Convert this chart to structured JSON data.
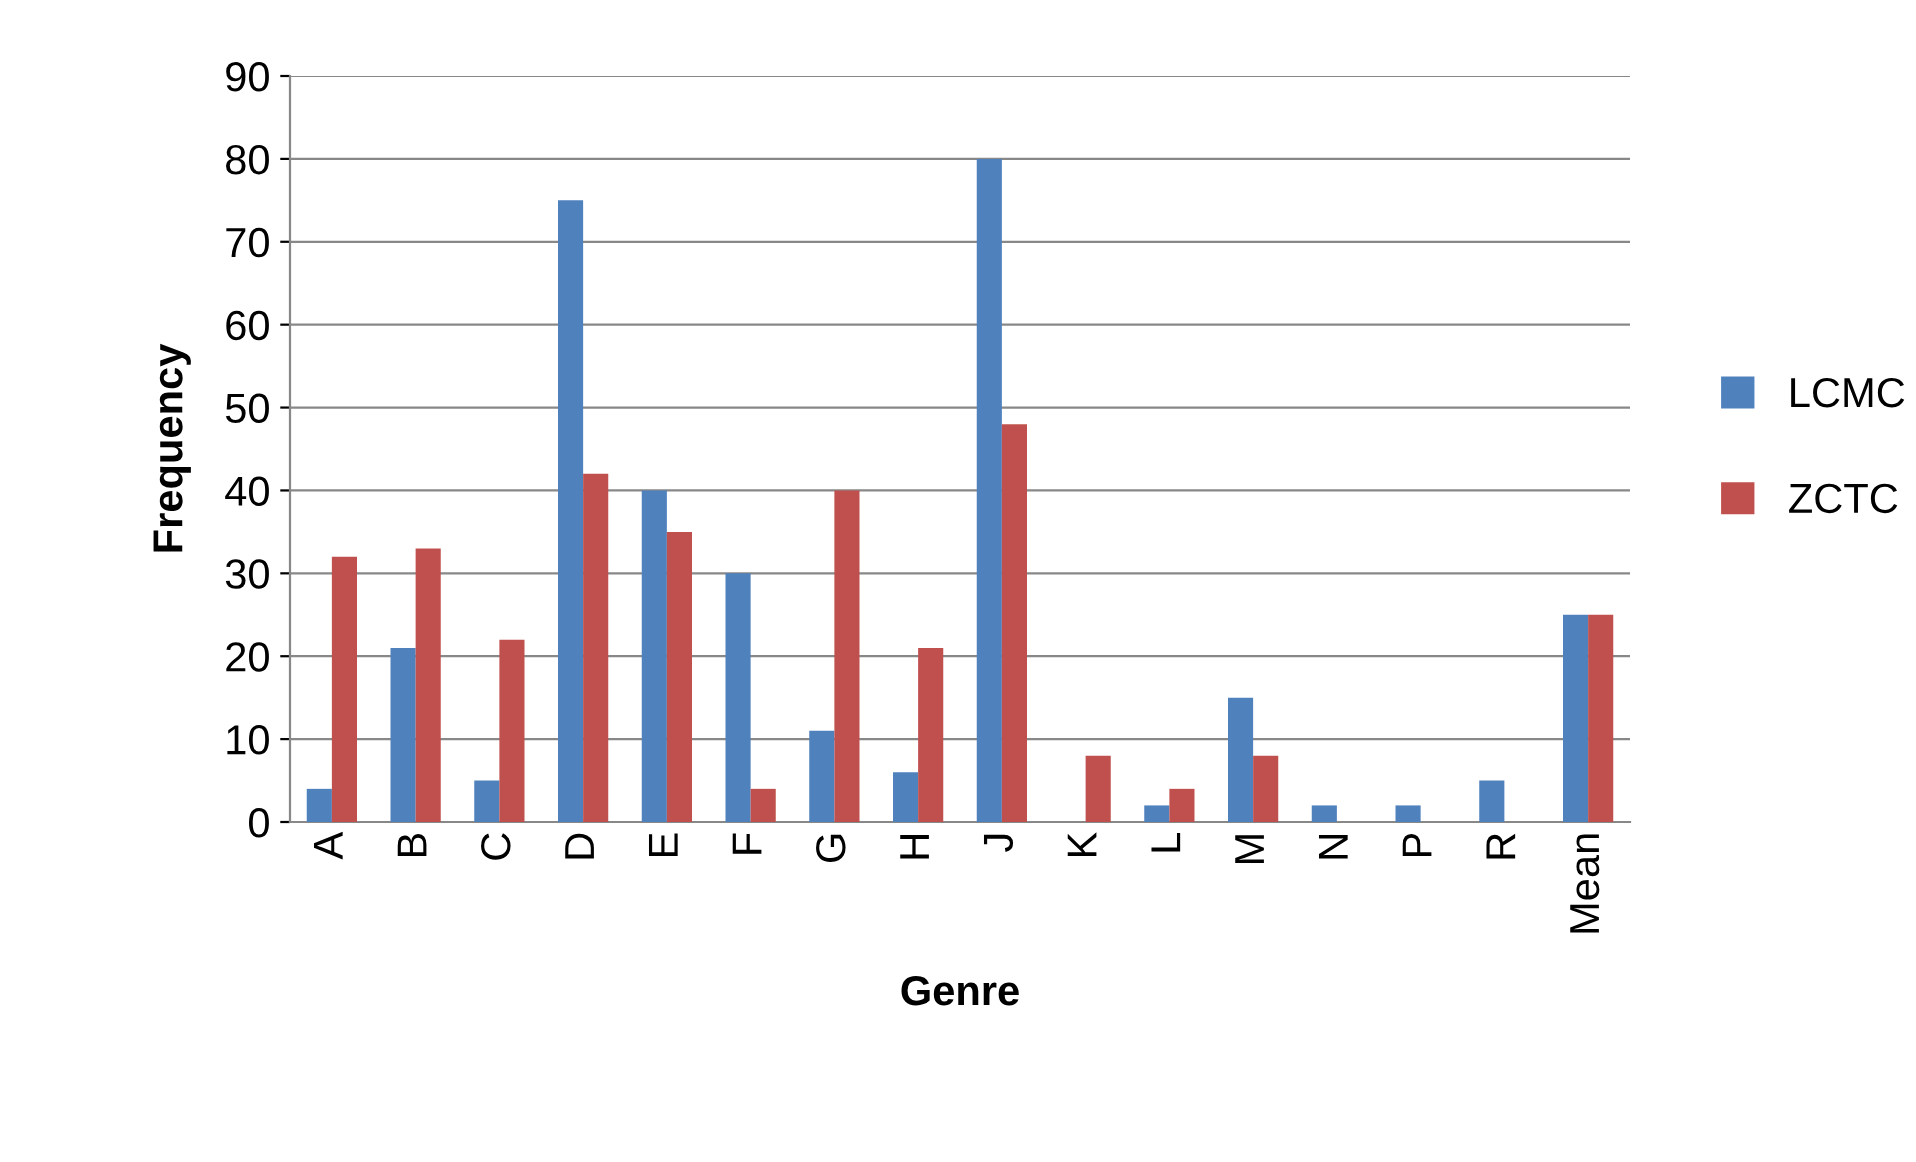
{
  "chart_data": {
    "type": "bar",
    "xlabel": "Genre",
    "ylabel": "Frequency",
    "categories": [
      "A",
      "B",
      "C",
      "D",
      "E",
      "F",
      "G",
      "H",
      "J",
      "K",
      "L",
      "M",
      "N",
      "P",
      "R",
      "Mean"
    ],
    "series": [
      {
        "name": "LCMC",
        "color": "#4f81bd",
        "values": [
          4,
          21,
          5,
          75,
          40,
          30,
          11,
          6,
          80,
          0,
          2,
          15,
          2,
          2,
          5,
          25
        ]
      },
      {
        "name": "ZCTC",
        "color": "#c0504d",
        "values": [
          32,
          33,
          22,
          42,
          35,
          4,
          40,
          21,
          48,
          8,
          4,
          8,
          0,
          0,
          0,
          25
        ]
      }
    ],
    "ylim": [
      0,
      90
    ],
    "yticks": [
      0,
      10,
      20,
      30,
      40,
      50,
      60,
      70,
      80,
      90
    ],
    "grid": "y",
    "legend": "right"
  }
}
